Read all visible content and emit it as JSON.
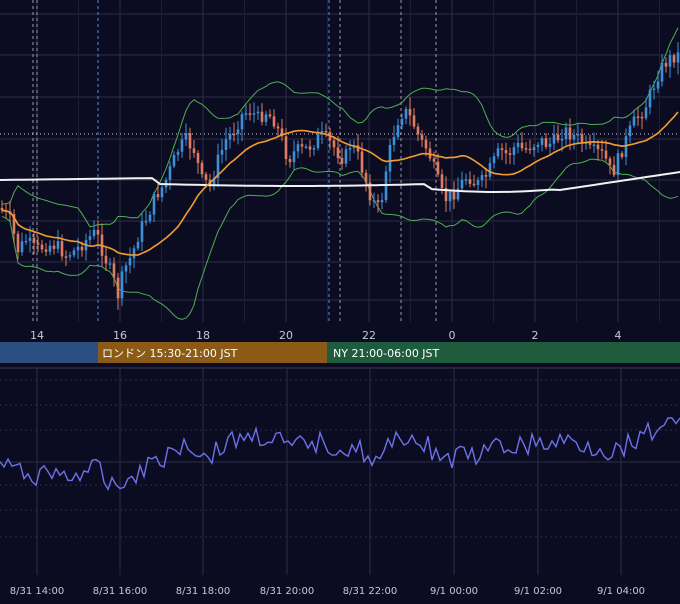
{
  "colors": {
    "background": "#0b0c21",
    "grid": "#2b2e46",
    "candle_up": "#3d8fd8",
    "candle_down": "#e07b5f",
    "ma_short": "#f39b2e",
    "ma_long": "#f2f2f2",
    "bollinger": "#4caf50",
    "rsi_line": "#6d72e8",
    "session_tokyo": "#2b4f80",
    "session_london": "#8a5a16",
    "session_ny": "#1f5b3d",
    "current_price_line": "#cfcfd8"
  },
  "sessions": {
    "london": {
      "label": "ロンドン 15:30-21:00 JST",
      "color": "#8a5a16"
    },
    "ny": {
      "label": "NY 21:00-06:00 JST",
      "color": "#1f5b3d"
    }
  },
  "chart_data": [
    {
      "type": "candlestick",
      "panel": "price",
      "x_unit": "hours since 8/31 12:00 JST",
      "x_tick_labels": [
        "14",
        "16",
        "18",
        "20",
        "22",
        "0",
        "2",
        "4"
      ],
      "x_ticks_hours_from_0831_1200": [
        2,
        4,
        6,
        8,
        10,
        12,
        14,
        16
      ],
      "indicators": [
        "moving average (orange)",
        "moving average (white)",
        "Bollinger Bands (green)"
      ],
      "grid": true
    },
    {
      "type": "line",
      "panel": "oscillator",
      "series_color": "#6d72e8",
      "x_tick_labels": [
        "8/31 14:00",
        "8/31 16:00",
        "8/31 18:00",
        "8/31 20:00",
        "8/31 22:00",
        "9/1 00:00",
        "9/1 02:00",
        "9/1 04:00"
      ],
      "grid": true
    }
  ]
}
